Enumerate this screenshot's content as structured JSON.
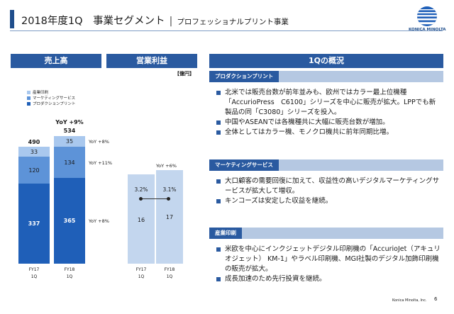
{
  "header": {
    "title_main": "2018年度1Q　事業セグメント",
    "separator": "|",
    "title_sub": "プロフェッショナルプリント事業",
    "logo_text": "KONICA MINOLTA"
  },
  "panels": {
    "sales_label": "売上高",
    "op_label": "営業利益",
    "overview_label": "1Qの概況"
  },
  "unit_label": "【億円】",
  "legend": [
    {
      "label": "産業印刷",
      "color": "#a9c8ee"
    },
    {
      "label": "マーケティングサービス",
      "color": "#5d93d8"
    },
    {
      "label": "プロダクションプリント",
      "color": "#1f5fb8"
    }
  ],
  "chart_data": [
    {
      "type": "bar",
      "title": "売上高",
      "stacked": true,
      "categories": [
        "FY17\n1Q",
        "FY18\n1Q"
      ],
      "series": [
        {
          "name": "プロダクションプリント",
          "values": [
            337,
            365
          ]
        },
        {
          "name": "マーケティングサービス",
          "values": [
            120,
            134
          ]
        },
        {
          "name": "産業印刷",
          "values": [
            33,
            35
          ]
        }
      ],
      "totals": [
        490,
        534
      ],
      "annotations": [
        "YoY +9%",
        "YoY +8%",
        "YoY +11%",
        "YoY +8%"
      ]
    },
    {
      "type": "bar",
      "title": "営業利益",
      "categories": [
        "FY17\n1Q",
        "FY18\n1Q"
      ],
      "values": [
        16,
        17
      ],
      "ratio_line": [
        3.2,
        3.1
      ],
      "ratio_labels": [
        "3.2%",
        "3.1%"
      ],
      "annotations": [
        "YoY +6%"
      ]
    }
  ],
  "sales_chart": {
    "x_labels": [
      {
        "line1": "FY17",
        "line2": "1Q"
      },
      {
        "line1": "FY18",
        "line2": "1Q"
      }
    ],
    "prod_values": [
      "337",
      "365"
    ],
    "mkt_values": [
      "120",
      "134"
    ],
    "ind_values": [
      "33",
      "35"
    ],
    "totals": [
      "490",
      "534"
    ],
    "yoy_total": "YoY +9%",
    "yoy_ind": "YoY +8%",
    "yoy_mkt": "YoY +11%",
    "yoy_prod": "YoY +8%"
  },
  "op_chart": {
    "x_labels": [
      {
        "line1": "FY17",
        "line2": "1Q"
      },
      {
        "line1": "FY18",
        "line2": "1Q"
      }
    ],
    "values": [
      "16",
      "17"
    ],
    "ratios": [
      "3.2%",
      "3.1%"
    ],
    "yoy": "YoY +6%",
    "bar_color": "#c3d6ee"
  },
  "overview": {
    "sections": [
      {
        "title": "プロダクションプリント",
        "bullets": [
          "北米では販売台数が前年並みも、欧州ではカラー最上位機種「AccurioPress　C6100」シリーズを中心に販売が拡大。LPPでも新製品の同「C3080」シリーズを投入。",
          "中国やASEANでは各機種共に大幅に販売台数が増加。",
          "全体としてはカラー機、モノクロ機共に前年同期比増。"
        ]
      },
      {
        "title": "マーケティングサービス",
        "bullets": [
          "大口顧客の需要回復に加えて、収益性の高いデジタルマーケティングサービスが拡大して増収。",
          "キンコーズは安定した収益を継続。"
        ]
      },
      {
        "title": "産業印刷",
        "bullets": [
          "米欧を中心にインクジェットデジタル印刷機の「AccurioJet（アキュリオジェット） KM-1」やラベル印刷機、MGI社製のデジタル加飾印刷機の販売が拡大。",
          "成長加速のため先行投資を継続。"
        ]
      }
    ]
  },
  "footer": {
    "company": "Konica Minolta, Inc.",
    "page": "6"
  },
  "colors": {
    "accent": "#2a5aa0",
    "prod": "#1f5fb8",
    "mkt": "#5d93d8",
    "ind": "#a9c8ee"
  }
}
